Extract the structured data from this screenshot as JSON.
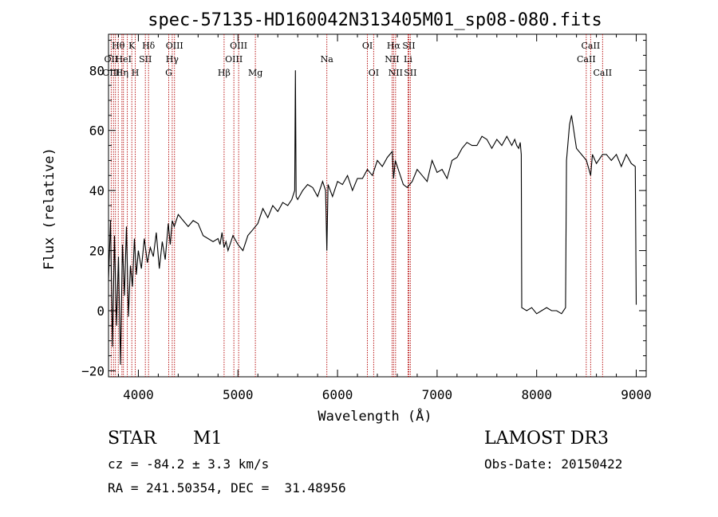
{
  "chart_data": {
    "type": "line",
    "title": "spec-57135-HD160042N313405M01_sp08-080.fits",
    "xlabel": "Wavelength (Å)",
    "ylabel": "Flux (relative)",
    "xlim": [
      3700,
      9100
    ],
    "ylim": [
      -22,
      92
    ],
    "xticks": [
      4000,
      5000,
      6000,
      7000,
      8000,
      9000
    ],
    "yticks": [
      -20,
      0,
      20,
      40,
      60,
      80
    ],
    "grid": false,
    "series": [
      {
        "x": [
          3700,
          3720,
          3740,
          3760,
          3780,
          3800,
          3820,
          3840,
          3860,
          3880,
          3900,
          3920,
          3940,
          3960,
          3980,
          4000,
          4030,
          4060,
          4090,
          4120,
          4150,
          4180,
          4210,
          4240,
          4270,
          4300,
          4320,
          4340,
          4360,
          4400,
          4450,
          4500,
          4550,
          4600,
          4650,
          4700,
          4750,
          4800,
          4820,
          4840,
          4860,
          4880,
          4900,
          4950,
          5000,
          5050,
          5100,
          5150,
          5200,
          5250,
          5300,
          5350,
          5400,
          5450,
          5500,
          5540,
          5570,
          5577,
          5584,
          5600,
          5650,
          5700,
          5750,
          5800,
          5850,
          5880,
          5893,
          5905,
          5950,
          6000,
          6050,
          6100,
          6150,
          6200,
          6250,
          6300,
          6350,
          6400,
          6450,
          6500,
          6550,
          6563,
          6580,
          6620,
          6660,
          6700,
          6750,
          6800,
          6850,
          6900,
          6950,
          7000,
          7050,
          7100,
          7150,
          7200,
          7250,
          7300,
          7350,
          7400,
          7450,
          7500,
          7550,
          7600,
          7650,
          7700,
          7750,
          7780,
          7800,
          7820,
          7835,
          7845,
          7850,
          7900,
          7950,
          8000,
          8050,
          8100,
          8150,
          8200,
          8250,
          8290,
          8300,
          8330,
          8350,
          8400,
          8450,
          8500,
          8542,
          8560,
          8600,
          8662,
          8700,
          8750,
          8800,
          8850,
          8900,
          8950,
          8990,
          9000
        ],
        "values": [
          10,
          30,
          -12,
          25,
          -5,
          18,
          -18,
          22,
          5,
          28,
          -2,
          15,
          8,
          24,
          12,
          20,
          14,
          24,
          16,
          21,
          18,
          26,
          14,
          23,
          17,
          29,
          22,
          30,
          28,
          32,
          30,
          28,
          30,
          29,
          25,
          24,
          23,
          24,
          22,
          26,
          21,
          23,
          20,
          25,
          22,
          20,
          25,
          27,
          29,
          34,
          31,
          35,
          33,
          36,
          35,
          37,
          40,
          80,
          38,
          37,
          40,
          42,
          41,
          38,
          43,
          40,
          20,
          42,
          38,
          43,
          42,
          45,
          40,
          44,
          44,
          47,
          45,
          50,
          48,
          51,
          53,
          44,
          50,
          46,
          42,
          41,
          43,
          47,
          45,
          43,
          50,
          46,
          47,
          44,
          50,
          51,
          54,
          56,
          55,
          55,
          58,
          57,
          54,
          57,
          55,
          58,
          55,
          57,
          55,
          54,
          56,
          52,
          1,
          0,
          1,
          -1,
          0,
          1,
          0,
          0,
          -1,
          1,
          50,
          62,
          65,
          54,
          52,
          50,
          45,
          52,
          49,
          52,
          52,
          50,
          52,
          48,
          52,
          49,
          48,
          2
        ]
      }
    ],
    "line_labels": [
      {
        "text": "Hθ",
        "x": 3798,
        "row": 1
      },
      {
        "text": "OII",
        "x": 3727,
        "row": 2
      },
      {
        "text": "OIII",
        "x": 3727,
        "row": 3
      },
      {
        "text": "K",
        "x": 3934,
        "row": 1
      },
      {
        "text": "HeI",
        "x": 3850,
        "row": 2
      },
      {
        "text": "Hη",
        "x": 3835,
        "row": 3
      },
      {
        "text": "Hδ",
        "x": 4102,
        "row": 1
      },
      {
        "text": "SII",
        "x": 4070,
        "row": 2
      },
      {
        "text": "H",
        "x": 3969,
        "row": 3
      },
      {
        "text": "OIII",
        "x": 4363,
        "row": 1
      },
      {
        "text": "Hγ",
        "x": 4340,
        "row": 2
      },
      {
        "text": "G",
        "x": 4305,
        "row": 3
      },
      {
        "text": "OIII",
        "x": 5007,
        "row": 1
      },
      {
        "text": "OIII",
        "x": 4959,
        "row": 2
      },
      {
        "text": "Hβ",
        "x": 4861,
        "row": 3
      },
      {
        "text": "Mg",
        "x": 5175,
        "row": 3
      },
      {
        "text": "Na",
        "x": 5893,
        "row": 2
      },
      {
        "text": "OI",
        "x": 6300,
        "row": 1
      },
      {
        "text": "OI",
        "x": 6363,
        "row": 3
      },
      {
        "text": "Hα",
        "x": 6563,
        "row": 1
      },
      {
        "text": "NII",
        "x": 6548,
        "row": 2
      },
      {
        "text": "NII",
        "x": 6583,
        "row": 3
      },
      {
        "text": "SII",
        "x": 6716,
        "row": 1
      },
      {
        "text": "Li",
        "x": 6708,
        "row": 2
      },
      {
        "text": "SII",
        "x": 6731,
        "row": 3
      },
      {
        "text": "CaII",
        "x": 8542,
        "row": 1
      },
      {
        "text": "CaII",
        "x": 8498,
        "row": 2
      },
      {
        "text": "CaII",
        "x": 8662,
        "row": 3
      }
    ],
    "marker_lines": [
      3727,
      3750,
      3770,
      3798,
      3835,
      3850,
      3889,
      3934,
      3969,
      4070,
      4102,
      4305,
      4340,
      4363,
      4861,
      4959,
      5007,
      5175,
      5893,
      6300,
      6363,
      6548,
      6563,
      6583,
      6708,
      6716,
      6731,
      8498,
      8542,
      8662
    ],
    "marker_color": "#b30000"
  },
  "info": {
    "object_class": "STAR",
    "subclass": "M1",
    "survey": "LAMOST DR3",
    "cz": "cz = -84.2 ± 3.3 km/s",
    "obs_date": "Obs-Date: 20150422",
    "coords": "RA = 241.50354, DEC =  31.48956"
  }
}
